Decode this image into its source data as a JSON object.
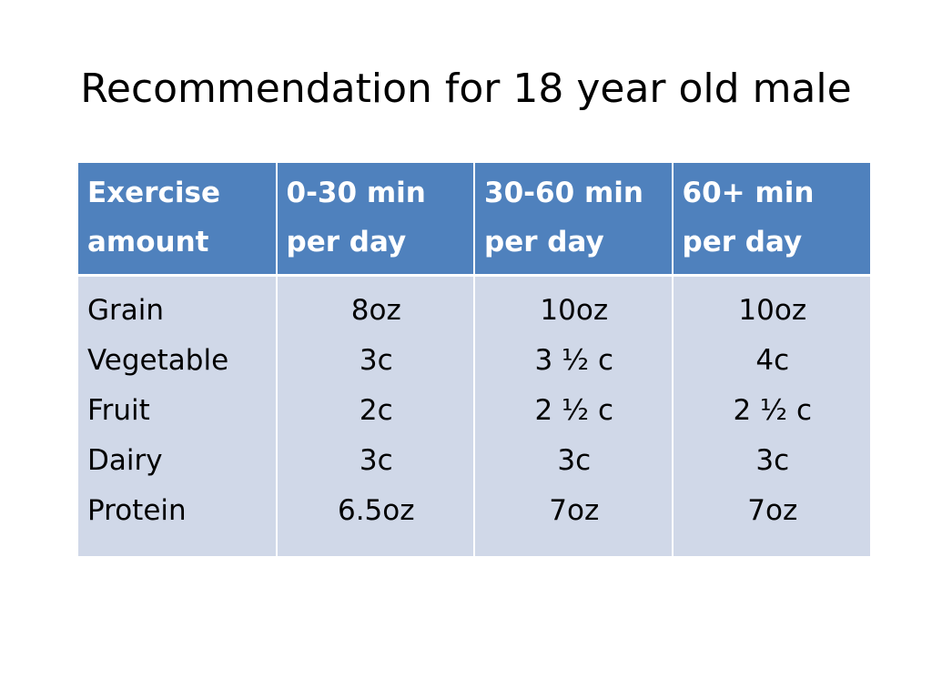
{
  "slide": {
    "title": "Recommendation for 18 year old male"
  },
  "table": {
    "headers": [
      {
        "line1": "Exercise",
        "line2": "amount"
      },
      {
        "line1": "0-30 min",
        "line2": "per day"
      },
      {
        "line1": "30-60 min",
        "line2": "per day"
      },
      {
        "line1": "60+ min",
        "line2": "per day"
      }
    ],
    "food_groups": [
      "Grain",
      "Vegetable",
      "Fruit",
      "Dairy",
      "Protein"
    ],
    "columns": [
      [
        "8oz",
        "3c",
        "2c",
        "3c",
        "6.5oz"
      ],
      [
        "10oz",
        "3 ½ c",
        "2 ½ c",
        "3c",
        "7oz"
      ],
      [
        "10oz",
        "4c",
        "2 ½ c",
        "3c",
        "7oz"
      ]
    ]
  }
}
